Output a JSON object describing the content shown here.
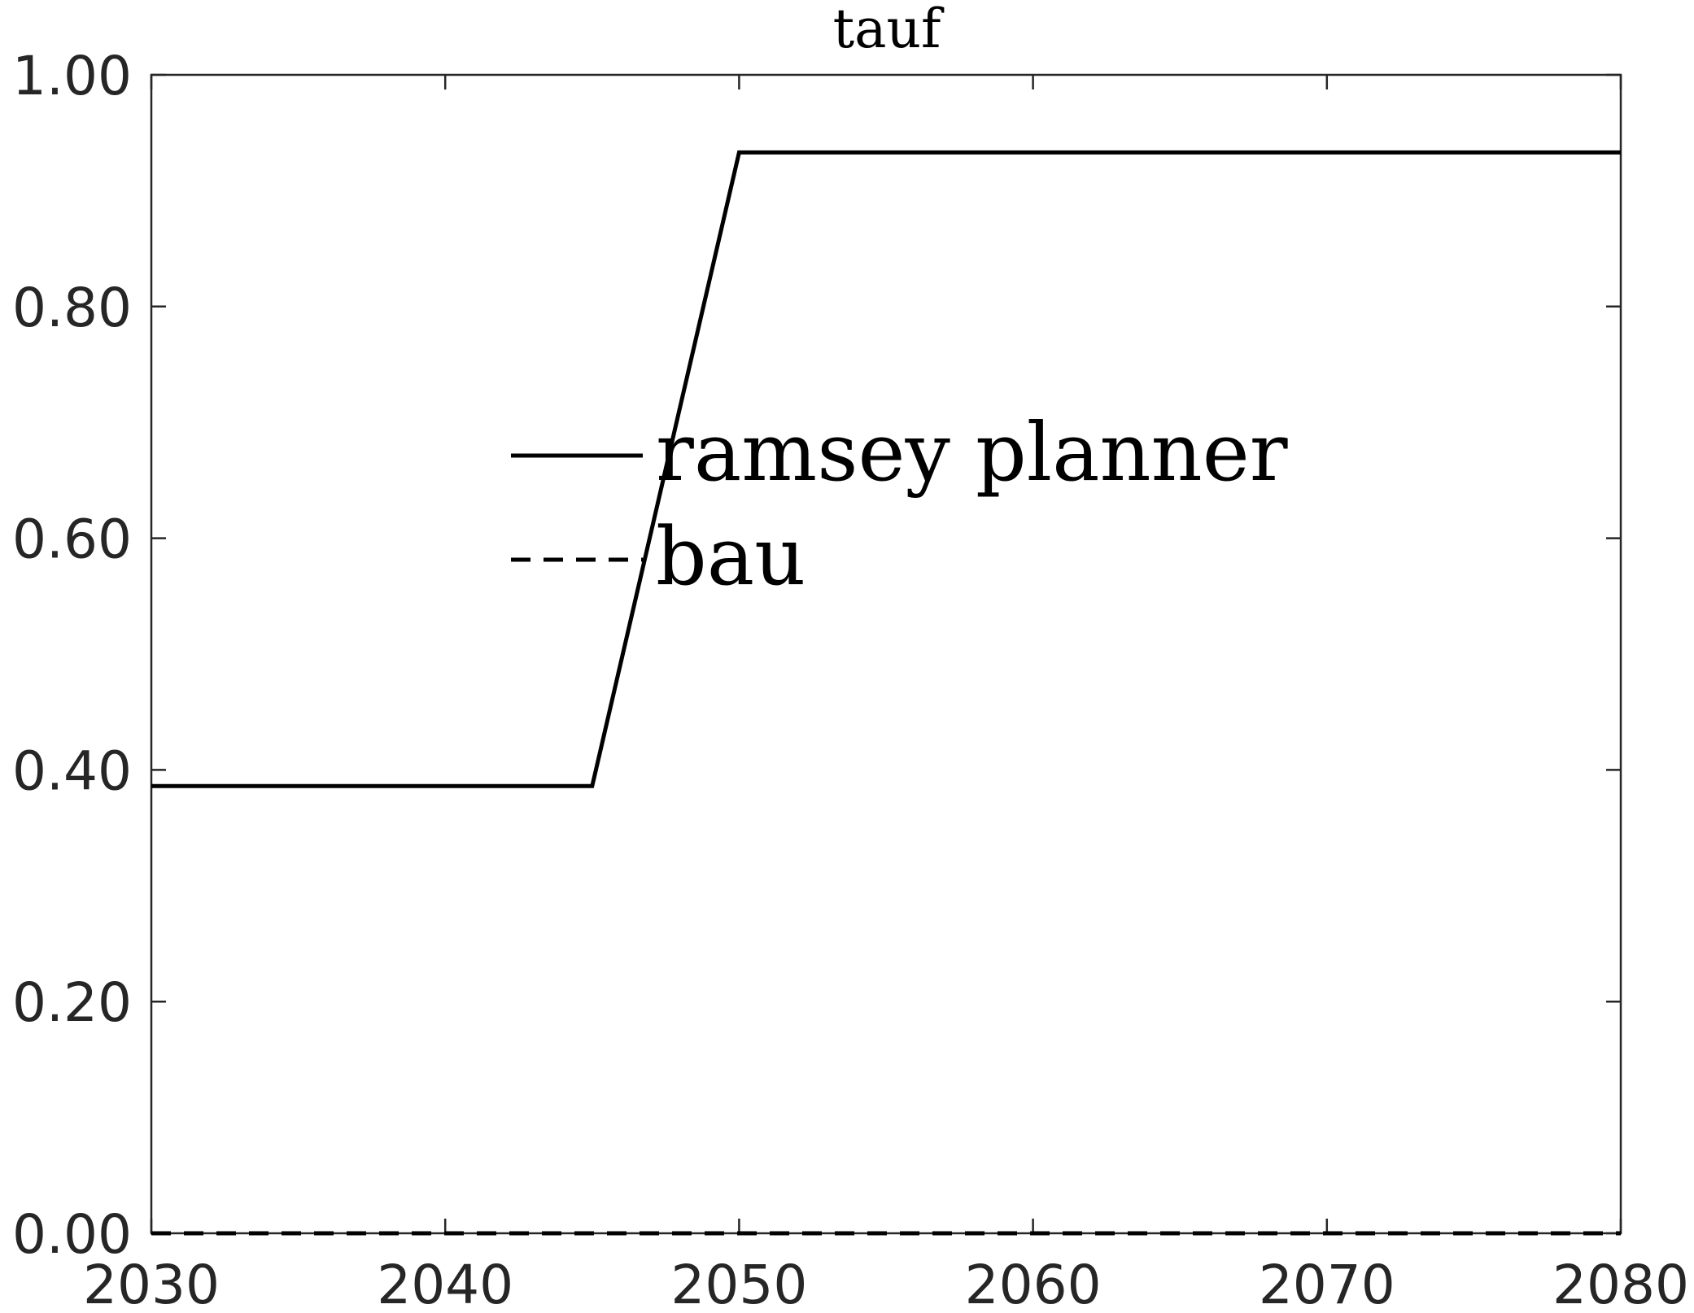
{
  "chart_data": {
    "type": "line",
    "title": "tauf",
    "xlabel": "",
    "ylabel": "",
    "xlim": [
      2030,
      2080
    ],
    "ylim": [
      0,
      1
    ],
    "x_ticks": [
      2030,
      2040,
      2050,
      2060,
      2070,
      2080
    ],
    "x_tick_labels": [
      "2030",
      "2040",
      "2050",
      "2060",
      "2070",
      "2080"
    ],
    "y_ticks": [
      0,
      0.2,
      0.4,
      0.6,
      0.8,
      1.0
    ],
    "y_tick_labels": [
      "0.00",
      "0.20",
      "0.40",
      "0.60",
      "0.80",
      "1.00"
    ],
    "grid": false,
    "legend_position": "upper-center",
    "series": [
      {
        "name": "ramsey planner",
        "style": "solid",
        "color": "#000000",
        "x": [
          2030,
          2045,
          2050,
          2080
        ],
        "y": [
          0.386,
          0.386,
          0.933,
          0.933
        ]
      },
      {
        "name": "bau",
        "style": "dashed",
        "color": "#000000",
        "x": [
          2030,
          2080
        ],
        "y": [
          0,
          0
        ]
      }
    ]
  }
}
